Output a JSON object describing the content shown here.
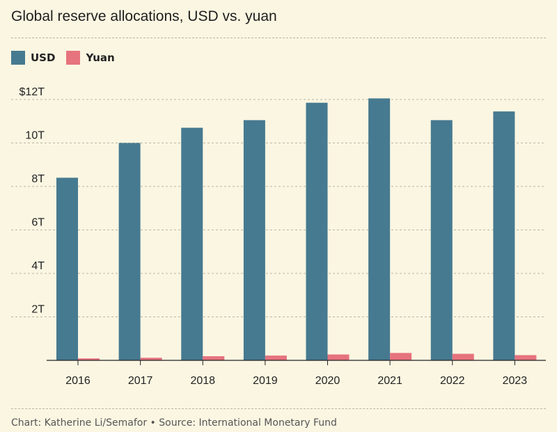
{
  "title": "Global reserve allocations, USD vs. yuan",
  "footer": "Chart: Katherine Li/Semafor • Source: International Monetary Fund",
  "colors": {
    "usd": "#467a90",
    "yuan": "#e6737e",
    "grid": "#b9b5a3",
    "axis": "#222222"
  },
  "chart_data": {
    "type": "bar",
    "title": "Global reserve allocations, USD vs. yuan",
    "xlabel": "",
    "ylabel": "",
    "categories": [
      "2016",
      "2017",
      "2018",
      "2019",
      "2020",
      "2021",
      "2022",
      "2023"
    ],
    "series": [
      {
        "name": "USD",
        "values": [
          8.4,
          10.0,
          10.7,
          11.05,
          11.85,
          12.05,
          11.05,
          11.45
        ]
      },
      {
        "name": "Yuan",
        "values": [
          0.09,
          0.12,
          0.19,
          0.22,
          0.27,
          0.34,
          0.3,
          0.24
        ]
      }
    ],
    "ylim": [
      0,
      12
    ],
    "yticks": [
      {
        "value": 2,
        "label": "2T"
      },
      {
        "value": 4,
        "label": "4T"
      },
      {
        "value": 6,
        "label": "6T"
      },
      {
        "value": 8,
        "label": "8T"
      },
      {
        "value": 10,
        "label": "10T"
      },
      {
        "value": 12,
        "label": "$12T"
      }
    ],
    "grid": true,
    "legend": "top-left"
  }
}
